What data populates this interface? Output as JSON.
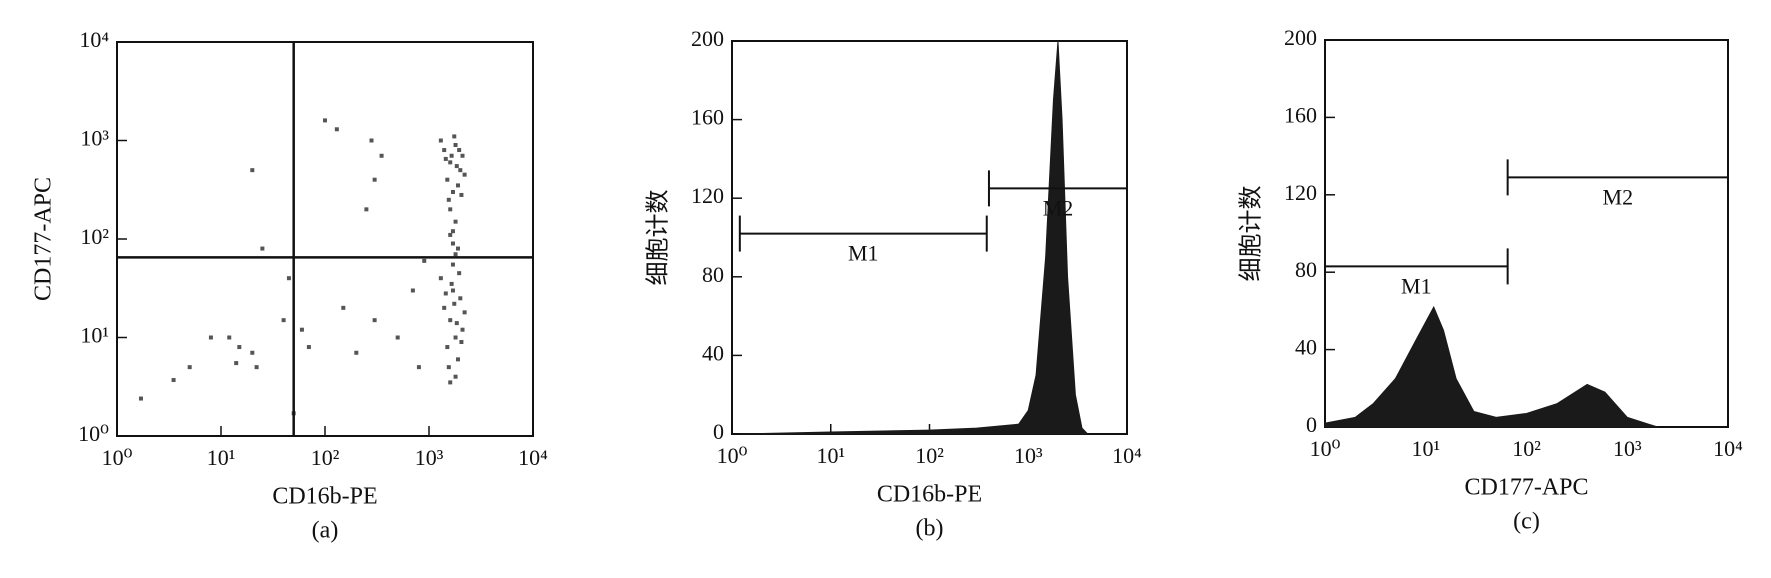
{
  "chart_data": [
    {
      "type": "scatter",
      "caption": "(a)",
      "xlabel": "CD16b-PE",
      "ylabel": "CD177-APC",
      "xscale": "log",
      "yscale": "log",
      "color": "#555555",
      "xlim": [
        1,
        10000
      ],
      "ylim": [
        1,
        10000
      ],
      "xticks": [
        {
          "value": 1,
          "label": "10⁰"
        },
        {
          "value": 10,
          "label": "10¹"
        },
        {
          "value": 100,
          "label": "10²"
        },
        {
          "value": 1000,
          "label": "10³"
        },
        {
          "value": 10000,
          "label": "10⁴"
        }
      ],
      "yticks": [
        {
          "value": 1,
          "label": "10⁰"
        },
        {
          "value": 10,
          "label": "10¹"
        },
        {
          "value": 100,
          "label": "10²"
        },
        {
          "value": 1000,
          "label": "10³"
        },
        {
          "value": 10000,
          "label": "10⁴"
        }
      ],
      "quadrant": {
        "x": 50,
        "y": 65
      },
      "x": [
        1400,
        1600,
        1800,
        2000,
        1500,
        1700,
        2100,
        1300,
        1900,
        2200,
        1550,
        1750,
        1650,
        1850,
        2050,
        1450,
        1950,
        1600,
        1800,
        1700,
        1700,
        1800,
        1600,
        1900,
        1400,
        1600,
        1800,
        2000,
        1500,
        1700,
        2100,
        1300,
        1900,
        2200,
        1550,
        1750,
        1650,
        1850,
        2050,
        1450,
        1950,
        1600,
        1800,
        1700,
        1.7,
        3.5,
        5,
        8,
        12,
        15,
        14,
        20,
        22,
        25,
        20,
        100,
        130,
        280,
        300,
        250,
        350,
        50,
        70,
        150,
        300,
        500,
        700,
        800,
        900,
        60,
        45,
        40,
        200
      ],
      "values": [
        800,
        600,
        900,
        500,
        400,
        300,
        700,
        1000,
        350,
        450,
        250,
        1100,
        700,
        550,
        280,
        650,
        800,
        200,
        150,
        120,
        90,
        70,
        110,
        80,
        20,
        15,
        10,
        25,
        8,
        30,
        12,
        40,
        6,
        18,
        5,
        22,
        35,
        14,
        9,
        28,
        45,
        3.5,
        4,
        55,
        2.4,
        3.7,
        5,
        10,
        10,
        8,
        5.5,
        7,
        5,
        80,
        500,
        1600,
        1300,
        1000,
        400,
        200,
        700,
        1.7,
        8,
        20,
        15,
        10,
        30,
        5,
        60,
        12,
        40,
        15,
        7
      ]
    },
    {
      "type": "area",
      "caption": "(b)",
      "xlabel": "CD16b-PE",
      "ylabel": "细胞计数",
      "xscale": "log",
      "color": "#1a1a1a",
      "xlim": [
        1,
        10000
      ],
      "ylim": [
        0,
        200
      ],
      "xticks": [
        {
          "value": 1,
          "label": "10⁰"
        },
        {
          "value": 10,
          "label": "10¹"
        },
        {
          "value": 100,
          "label": "10²"
        },
        {
          "value": 1000,
          "label": "10³"
        },
        {
          "value": 10000,
          "label": "10⁴"
        }
      ],
      "yticks": [
        0,
        40,
        80,
        120,
        160,
        200
      ],
      "x": [
        1.2,
        10,
        100,
        300,
        800,
        1000,
        1200,
        1500,
        1800,
        2000,
        2200,
        2500,
        3000,
        3500,
        4000
      ],
      "values": [
        0,
        1,
        2,
        3,
        5,
        12,
        30,
        90,
        170,
        200,
        160,
        80,
        20,
        3,
        0
      ],
      "gates": [
        {
          "label": "M1",
          "range": [
            1.2,
            380
          ],
          "y": 102
        },
        {
          "label": "M2",
          "range": [
            400,
            10000
          ],
          "y": 125
        }
      ]
    },
    {
      "type": "area",
      "caption": "(c)",
      "xlabel": "CD177-APC",
      "ylabel": "细胞计数",
      "xscale": "log",
      "color": "#1a1a1a",
      "xlim": [
        1,
        10000
      ],
      "ylim": [
        0,
        200
      ],
      "xticks": [
        {
          "value": 1,
          "label": "10⁰"
        },
        {
          "value": 10,
          "label": "10¹"
        },
        {
          "value": 100,
          "label": "10²"
        },
        {
          "value": 1000,
          "label": "10³"
        },
        {
          "value": 10000,
          "label": "10⁴"
        }
      ],
      "yticks": [
        0,
        40,
        80,
        120,
        160,
        200
      ],
      "x": [
        1,
        2,
        3,
        5,
        8,
        12,
        15,
        20,
        30,
        50,
        100,
        200,
        400,
        600,
        1000,
        2000
      ],
      "values": [
        2,
        5,
        12,
        25,
        45,
        62,
        50,
        25,
        8,
        5,
        7,
        12,
        22,
        18,
        5,
        0
      ],
      "gates": [
        {
          "label": "M1",
          "range": [
            1,
            65
          ],
          "y": 83
        },
        {
          "label": "M2",
          "range": [
            65,
            10000
          ],
          "y": 129
        }
      ]
    }
  ]
}
